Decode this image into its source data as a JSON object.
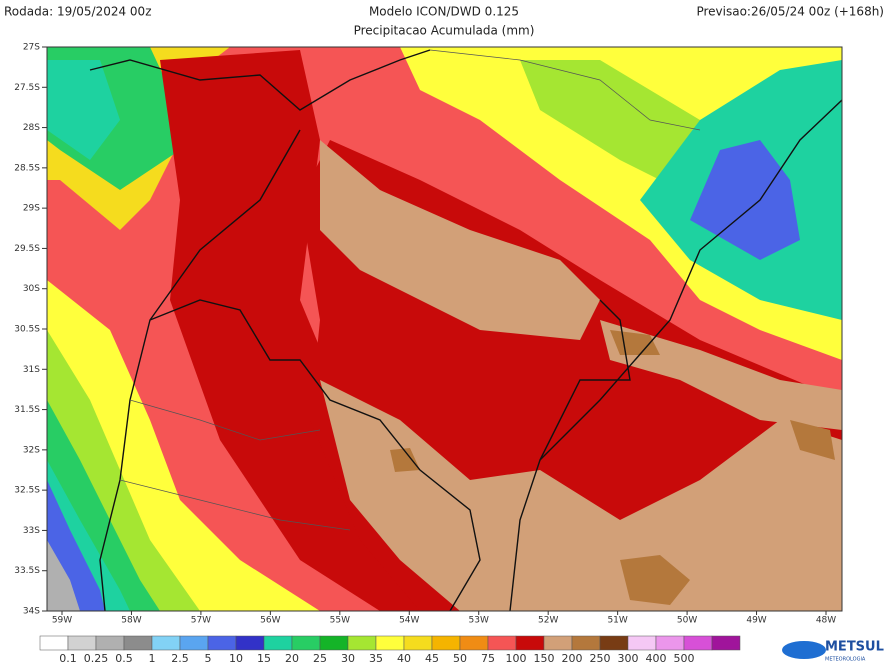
{
  "header": {
    "run": "Rodada: 19/05/2024 00z",
    "model": "Modelo ICON/DWD 0.125",
    "product": "Precipitacao Acumulada (mm)",
    "forecast": "Previsao:26/05/24 00z (+168h)"
  },
  "latitude_labels": [
    "27S",
    "27.5S",
    "28S",
    "28.5S",
    "29S",
    "29.5S",
    "30S",
    "30.5S",
    "31S",
    "31.5S",
    "32S",
    "32.5S",
    "33S",
    "33.5S",
    "34S"
  ],
  "longitude_labels": [
    "59W",
    "58W",
    "57W",
    "56W",
    "55W",
    "54W",
    "53W",
    "52W",
    "51W",
    "50W",
    "49W",
    "48W"
  ],
  "colorbar": {
    "labels": [
      "0.1",
      "0.25",
      "0.5",
      "1",
      "2.5",
      "5",
      "10",
      "15",
      "20",
      "25",
      "30",
      "35",
      "40",
      "45",
      "50",
      "75",
      "100",
      "150",
      "200",
      "250",
      "300",
      "400",
      "500"
    ],
    "colors": [
      "#ffffff",
      "#d2d2d2",
      "#b0b0b0",
      "#8c8c8c",
      "#82d2f5",
      "#5aa5f0",
      "#4b64e6",
      "#3232c8",
      "#1ed2a0",
      "#28cd64",
      "#14b428",
      "#a5e632",
      "#ffff3c",
      "#f5dc1e",
      "#f5b400",
      "#f08c14",
      "#f55555",
      "#c80a0a",
      "#d2a078",
      "#b4783c",
      "#783c14",
      "#f5c8f5",
      "#eb96eb",
      "#d750d7",
      "#a0149b"
    ]
  },
  "logo": {
    "name": "METSUL",
    "tagline": "METEOROLOGIA"
  }
}
